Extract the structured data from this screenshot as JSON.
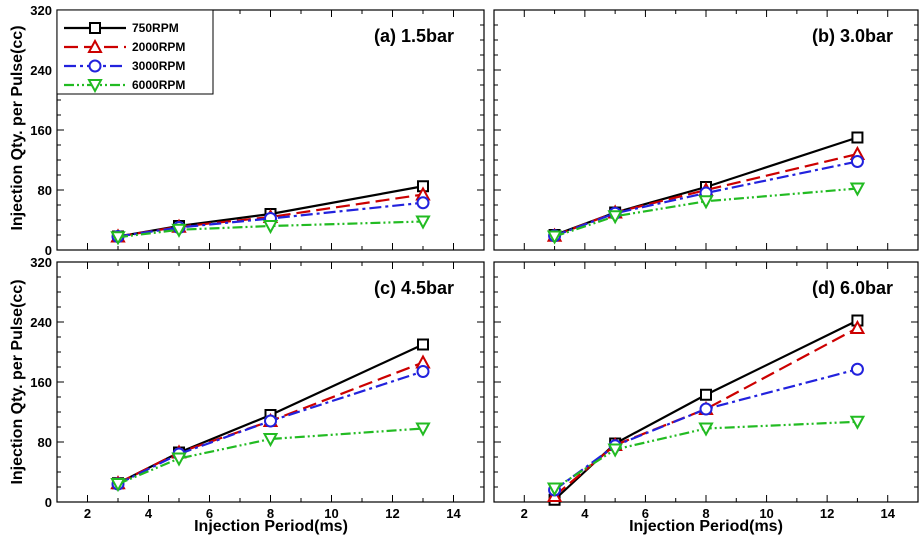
{
  "chart_data": [
    {
      "type": "line",
      "title": "(a) 1.5bar",
      "x": [
        3,
        5,
        8,
        13
      ],
      "xlim": [
        1,
        15
      ],
      "ylim": [
        0,
        320
      ],
      "xticks": [
        "2",
        "4",
        "6",
        "8",
        "10",
        "12",
        "14"
      ],
      "yticks": [
        "0",
        "80",
        "160",
        "240",
        "320"
      ],
      "grid": false,
      "legend": "top-left",
      "series": [
        {
          "name": "750RPM",
          "values": [
            18,
            32,
            48,
            85
          ]
        },
        {
          "name": "2000RPM",
          "values": [
            18,
            31,
            44,
            74
          ]
        },
        {
          "name": "3000RPM",
          "values": [
            18,
            30,
            42,
            63
          ]
        },
        {
          "name": "6000RPM",
          "values": [
            17,
            27,
            32,
            38
          ]
        }
      ]
    },
    {
      "type": "line",
      "title": "(b) 3.0bar",
      "x": [
        3,
        5,
        8,
        13
      ],
      "xlim": [
        1,
        15
      ],
      "ylim": [
        0,
        320
      ],
      "series": [
        {
          "name": "750RPM",
          "values": [
            20,
            50,
            84,
            150
          ]
        },
        {
          "name": "2000RPM",
          "values": [
            19,
            50,
            80,
            128
          ]
        },
        {
          "name": "3000RPM",
          "values": [
            19,
            49,
            76,
            118
          ]
        },
        {
          "name": "6000RPM",
          "values": [
            18,
            45,
            65,
            82
          ]
        }
      ]
    },
    {
      "type": "line",
      "title": "(c) 4.5bar",
      "x": [
        3,
        5,
        8,
        13
      ],
      "xlim": [
        1,
        15
      ],
      "ylim": [
        0,
        320
      ],
      "xticks": [
        "2",
        "4",
        "6",
        "8",
        "10",
        "12",
        "14"
      ],
      "yticks": [
        "0",
        "80",
        "160",
        "240",
        "320"
      ],
      "series": [
        {
          "name": "750RPM",
          "values": [
            25,
            66,
            116,
            210
          ]
        },
        {
          "name": "2000RPM",
          "values": [
            25,
            66,
            108,
            186
          ]
        },
        {
          "name": "3000RPM",
          "values": [
            24,
            64,
            108,
            174
          ]
        },
        {
          "name": "6000RPM",
          "values": [
            24,
            58,
            84,
            98
          ]
        }
      ]
    },
    {
      "type": "line",
      "title": "(d) 6.0bar",
      "x": [
        3,
        5,
        8,
        13
      ],
      "xlim": [
        1,
        15
      ],
      "ylim": [
        0,
        320
      ],
      "xticks": [
        "2",
        "4",
        "6",
        "8",
        "10",
        "12",
        "14"
      ],
      "series": [
        {
          "name": "750RPM",
          "values": [
            3,
            78,
            143,
            242
          ]
        },
        {
          "name": "2000RPM",
          "values": [
            8,
            76,
            124,
            232
          ]
        },
        {
          "name": "3000RPM",
          "values": [
            16,
            75,
            124,
            177
          ]
        },
        {
          "name": "6000RPM",
          "values": [
            18,
            70,
            98,
            107
          ]
        }
      ]
    }
  ],
  "axes": {
    "ylabel": "Injection Qty. per Pulse(cc)",
    "xlabel": "Injection Period(ms)"
  },
  "colors": {
    "750RPM": "#000000",
    "2000RPM": "#cc0000",
    "3000RPM": "#2222dd",
    "6000RPM": "#22bb22"
  }
}
